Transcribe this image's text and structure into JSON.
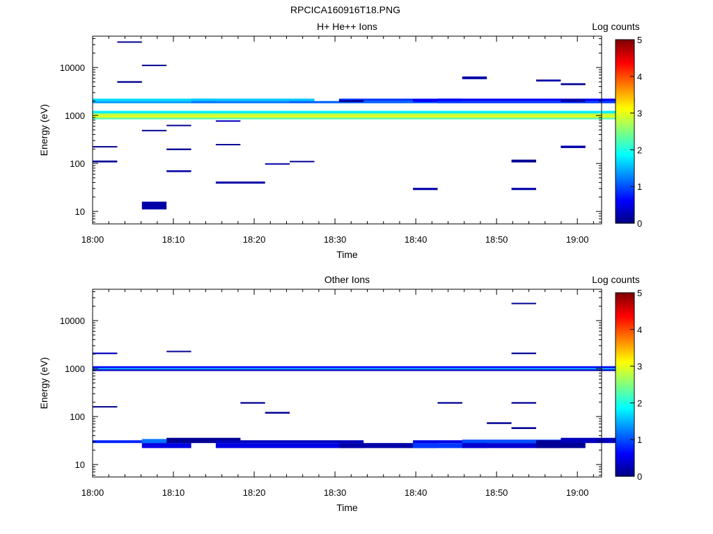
{
  "figure_title": "RPCICA160916T18.PNG",
  "chart_data": [
    {
      "type": "heatmap",
      "title": "H+ He++ Ions",
      "xlabel": "Time",
      "ylabel": "Energy (eV)",
      "xlim": [
        "18:00",
        "19:03"
      ],
      "ylim": [
        5.5,
        45000
      ],
      "y_scale": "log",
      "x_ticks": [
        "18:00",
        "18:10",
        "18:20",
        "18:30",
        "18:40",
        "18:50",
        "19:00"
      ],
      "y_ticks": [
        "10",
        "100",
        "1000",
        "10000"
      ],
      "colorbar": {
        "label": "Log counts",
        "range": [
          0,
          5
        ],
        "ticks": [
          "0",
          "1",
          "2",
          "3",
          "4",
          "5"
        ]
      },
      "time_bins": [
        "18:00",
        "18:03",
        "18:06",
        "18:09",
        "18:12",
        "18:15",
        "18:18",
        "18:21",
        "18:24",
        "18:27",
        "18:30",
        "18:33",
        "18:36",
        "18:39",
        "18:42",
        "18:45",
        "18:48",
        "18:51",
        "18:54",
        "18:57",
        "19:00"
      ],
      "cells": [
        {
          "t": [
            0,
            21
          ],
          "e": [
            1100,
            1250
          ],
          "v": 1.8
        },
        {
          "t": [
            0,
            21
          ],
          "e": [
            1000,
            1100
          ],
          "v": 2.8
        },
        {
          "t": [
            0,
            21
          ],
          "e": [
            900,
            1000
          ],
          "v": 3.0
        },
        {
          "t": [
            0,
            21
          ],
          "e": [
            830,
            900
          ],
          "v": 2.3
        },
        {
          "t": [
            0,
            4
          ],
          "e": [
            1800,
            2000
          ],
          "v": 1.4
        },
        {
          "t": [
            0,
            4
          ],
          "e": [
            2000,
            2250
          ],
          "v": 1.7
        },
        {
          "t": [
            4,
            8
          ],
          "e": [
            1800,
            2000
          ],
          "v": 1.2
        },
        {
          "t": [
            4,
            8
          ],
          "e": [
            2000,
            2250
          ],
          "v": 1.6
        },
        {
          "t": [
            8,
            10
          ],
          "e": [
            1800,
            2000
          ],
          "v": 1.1
        },
        {
          "t": [
            10,
            14
          ],
          "e": [
            1800,
            2000
          ],
          "v": 1.1
        },
        {
          "t": [
            10,
            14
          ],
          "e": [
            2000,
            2250
          ],
          "v": 0.9
        },
        {
          "t": [
            14,
            21
          ],
          "e": [
            1800,
            2000
          ],
          "v": 0.9
        },
        {
          "t": [
            14,
            21
          ],
          "e": [
            2000,
            2250
          ],
          "v": 0.6
        },
        {
          "t": [
            1,
            1
          ],
          "e": [
            4800,
            5200
          ],
          "v": 0.1
        },
        {
          "t": [
            0,
            0
          ],
          "e": [
            105,
            115
          ],
          "v": 0.1
        },
        {
          "t": [
            0,
            0
          ],
          "e": [
            215,
            230
          ],
          "v": 0.1
        },
        {
          "t": [
            2,
            2
          ],
          "e": [
            10800,
            11400
          ],
          "v": 0.1
        },
        {
          "t": [
            1,
            1
          ],
          "e": [
            33000,
            35000
          ],
          "v": 0.1
        },
        {
          "t": [
            2,
            2
          ],
          "e": [
            11.0,
            16.0
          ],
          "v": 0.2
        },
        {
          "t": [
            2,
            2
          ],
          "e": [
            470,
            500
          ],
          "v": 0.1
        },
        {
          "t": [
            3,
            3
          ],
          "e": [
            66,
            72
          ],
          "v": 0.2
        },
        {
          "t": [
            3,
            3
          ],
          "e": [
            190,
            205
          ],
          "v": 0.1
        },
        {
          "t": [
            3,
            3
          ],
          "e": [
            600,
            640
          ],
          "v": 0.1
        },
        {
          "t": [
            5,
            6
          ],
          "e": [
            38,
            42
          ],
          "v": 0.2
        },
        {
          "t": [
            5,
            5
          ],
          "e": [
            240,
            255
          ],
          "v": 0.1
        },
        {
          "t": [
            5,
            5
          ],
          "e": [
            740,
            790
          ],
          "v": 0.3
        },
        {
          "t": [
            7,
            7
          ],
          "e": [
            95,
            101
          ],
          "v": 0.2
        },
        {
          "t": [
            8,
            8
          ],
          "e": [
            106,
            113
          ],
          "v": 0.1
        },
        {
          "t": [
            10,
            10
          ],
          "e": [
            1900,
            2100
          ],
          "v": 0.1
        },
        {
          "t": [
            13,
            13
          ],
          "e": [
            28,
            31
          ],
          "v": 0.2
        },
        {
          "t": [
            13,
            13
          ],
          "e": [
            1900,
            2200
          ],
          "v": 0.6
        },
        {
          "t": [
            15,
            15
          ],
          "e": [
            5700,
            6500
          ],
          "v": 0.2
        },
        {
          "t": [
            17,
            17
          ],
          "e": [
            28,
            31
          ],
          "v": 0.2
        },
        {
          "t": [
            17,
            17
          ],
          "e": [
            105,
            120
          ],
          "v": 0.1
        },
        {
          "t": [
            18,
            18
          ],
          "e": [
            5100,
            5600
          ],
          "v": 0.2
        },
        {
          "t": [
            19,
            19
          ],
          "e": [
            210,
            235
          ],
          "v": 0.2
        },
        {
          "t": [
            19,
            19
          ],
          "e": [
            4300,
            4700
          ],
          "v": 0.1
        },
        {
          "t": [
            19,
            19
          ],
          "e": [
            1900,
            2200
          ],
          "v": 0.2
        }
      ]
    },
    {
      "type": "heatmap",
      "title": "Other Ions",
      "xlabel": "Time",
      "ylabel": "Energy (eV)",
      "xlim": [
        "18:00",
        "19:03"
      ],
      "ylim": [
        5.5,
        45000
      ],
      "y_scale": "log",
      "x_ticks": [
        "18:00",
        "18:10",
        "18:20",
        "18:30",
        "18:40",
        "18:50",
        "19:00"
      ],
      "y_ticks": [
        "10",
        "100",
        "1000",
        "10000"
      ],
      "colorbar": {
        "label": "Log counts",
        "range": [
          0,
          5
        ],
        "ticks": [
          "0",
          "1",
          "2",
          "3",
          "4",
          "5"
        ]
      },
      "cells": [
        {
          "t": [
            0,
            21
          ],
          "e": [
            1030,
            1120
          ],
          "v": 0.6
        },
        {
          "t": [
            0,
            21
          ],
          "e": [
            960,
            1030
          ],
          "v": 1.4
        },
        {
          "t": [
            0,
            21
          ],
          "e": [
            890,
            960
          ],
          "v": 0.3
        },
        {
          "t": [
            0,
            2
          ],
          "e": [
            28,
            32
          ],
          "v": 0.8
        },
        {
          "t": [
            2,
            3
          ],
          "e": [
            28,
            34
          ],
          "v": 1.2
        },
        {
          "t": [
            2,
            3
          ],
          "e": [
            22,
            28
          ],
          "v": 0.5
        },
        {
          "t": [
            3,
            5
          ],
          "e": [
            28,
            36
          ],
          "v": 0.1
        },
        {
          "t": [
            5,
            10
          ],
          "e": [
            28,
            32
          ],
          "v": 0.3
        },
        {
          "t": [
            5,
            10
          ],
          "e": [
            22,
            28
          ],
          "v": 0.5
        },
        {
          "t": [
            10,
            13
          ],
          "e": [
            22,
            28
          ],
          "v": 0.2
        },
        {
          "t": [
            13,
            15
          ],
          "e": [
            28,
            32
          ],
          "v": 0.5
        },
        {
          "t": [
            13,
            15
          ],
          "e": [
            22,
            28
          ],
          "v": 0.9
        },
        {
          "t": [
            15,
            18
          ],
          "e": [
            28,
            33
          ],
          "v": 1.0
        },
        {
          "t": [
            15,
            18
          ],
          "e": [
            22,
            28
          ],
          "v": 0.4
        },
        {
          "t": [
            18,
            19
          ],
          "e": [
            22,
            32
          ],
          "v": 0.1
        },
        {
          "t": [
            19,
            21
          ],
          "e": [
            28,
            36
          ],
          "v": 0.3
        },
        {
          "t": [
            0,
            0
          ],
          "e": [
            155,
            165
          ],
          "v": 0.1
        },
        {
          "t": [
            0,
            0
          ],
          "e": [
            2000,
            2150
          ],
          "v": 0.3
        },
        {
          "t": [
            3,
            3
          ],
          "e": [
            2200,
            2350
          ],
          "v": 0.1
        },
        {
          "t": [
            6,
            6
          ],
          "e": [
            185,
            200
          ],
          "v": 0.1
        },
        {
          "t": [
            7,
            7
          ],
          "e": [
            115,
            125
          ],
          "v": 0.1
        },
        {
          "t": [
            14,
            14
          ],
          "e": [
            185,
            200
          ],
          "v": 0.1
        },
        {
          "t": [
            16,
            16
          ],
          "e": [
            70,
            76
          ],
          "v": 0.1
        },
        {
          "t": [
            17,
            17
          ],
          "e": [
            2000,
            2150
          ],
          "v": 0.1
        },
        {
          "t": [
            17,
            17
          ],
          "e": [
            22000,
            23500
          ],
          "v": 0.1
        },
        {
          "t": [
            17,
            17
          ],
          "e": [
            185,
            200
          ],
          "v": 0.1
        },
        {
          "t": [
            17,
            17
          ],
          "e": [
            55,
            60
          ],
          "v": 0.1
        }
      ]
    }
  ]
}
